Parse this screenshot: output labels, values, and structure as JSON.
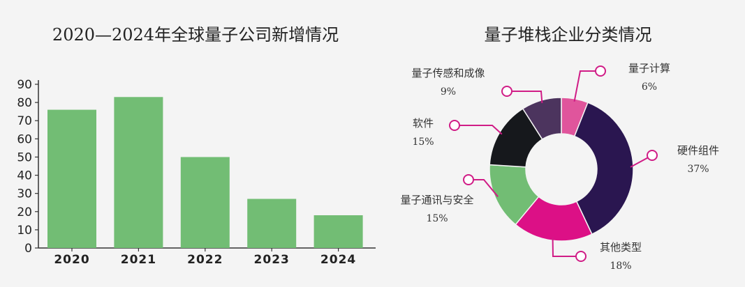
{
  "colors": {
    "bar": "#72bd74",
    "highlight": "#d6007a",
    "axis": "#333333",
    "leader": "#d01c86"
  },
  "chart_data": [
    {
      "type": "bar",
      "title": "2020—2024年全球量子公司新增情况",
      "categories": [
        "2020",
        "2021",
        "2022",
        "2023",
        "2024"
      ],
      "values": [
        76,
        83,
        50,
        27,
        18
      ],
      "highlight_category": "2024",
      "ylim": [
        0,
        90
      ],
      "yticks": [
        0,
        10,
        20,
        30,
        40,
        50,
        60,
        70,
        80,
        90
      ],
      "xlabel": "",
      "ylabel": "",
      "grid": false
    },
    {
      "type": "pie",
      "style": "donut",
      "title": "量子堆栈企业分类情况",
      "slices": [
        {
          "label": "量子计算",
          "value": 6,
          "pct_text": "6%",
          "color": "#e0559c"
        },
        {
          "label": "硬件组件",
          "value": 37,
          "pct_text": "37%",
          "color": "#2a1650"
        },
        {
          "label": "其他类型",
          "value": 18,
          "pct_text": "18%",
          "color": "#dc1086"
        },
        {
          "label": "量子通讯与安全",
          "value": 15,
          "pct_text": "15%",
          "color": "#72bd74"
        },
        {
          "label": "软件",
          "value": 15,
          "pct_text": "15%",
          "color": "#16181c"
        },
        {
          "label": "量子传感和成像",
          "value": 9,
          "pct_text": "9%",
          "color": "#4c345e"
        }
      ]
    }
  ]
}
